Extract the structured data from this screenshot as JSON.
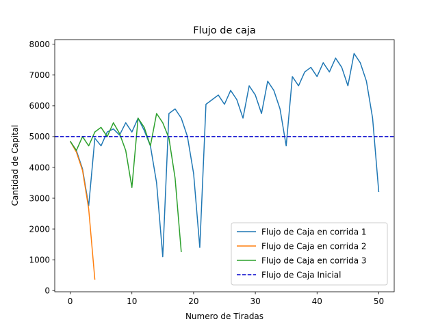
{
  "chart_data": {
    "type": "line",
    "title": "Flujo de caja",
    "xlabel": "Numero de Tiradas",
    "ylabel": "Cantidad de Capital",
    "xlim": [
      -2.5,
      52.5
    ],
    "ylim": [
      -40,
      8150
    ],
    "xticks": [
      0,
      10,
      20,
      30,
      40,
      50
    ],
    "yticks": [
      0,
      1000,
      2000,
      3000,
      4000,
      5000,
      6000,
      7000,
      8000
    ],
    "grid": false,
    "legend_position": "lower-right",
    "series": [
      {
        "name": "Flujo de Caja en corrida 1",
        "color": "#1f77b4",
        "style": "solid",
        "x": [
          0,
          1,
          2,
          3,
          4,
          5,
          6,
          7,
          8,
          9,
          10,
          11,
          12,
          13,
          14,
          15,
          16,
          17,
          18,
          19,
          20,
          21,
          22,
          23,
          24,
          25,
          26,
          27,
          28,
          29,
          30,
          31,
          32,
          33,
          34,
          35,
          36,
          37,
          38,
          39,
          40,
          41,
          42,
          43,
          44,
          45,
          46,
          47,
          48,
          49,
          50
        ],
        "y": [
          4850,
          4550,
          3950,
          2750,
          4950,
          4700,
          5150,
          5250,
          5050,
          5450,
          5150,
          5600,
          5200,
          4700,
          3500,
          1100,
          5750,
          5900,
          5600,
          5000,
          3800,
          1400,
          6050,
          6200,
          6350,
          6050,
          6500,
          6200,
          5600,
          6650,
          6350,
          5750,
          6800,
          6500,
          5900,
          4700,
          6950,
          6650,
          7100,
          7250,
          6950,
          7400,
          7100,
          7550,
          7250,
          6650,
          7700,
          7400,
          6800,
          5600,
          3200
        ]
      },
      {
        "name": "Flujo de Caja en corrida 2",
        "color": "#ff7f0e",
        "style": "solid",
        "x": [
          0,
          1,
          2,
          3,
          4
        ],
        "y": [
          4850,
          4500,
          3900,
          2650,
          350
        ]
      },
      {
        "name": "Flujo de Caja en corrida 3",
        "color": "#2ca02c",
        "style": "solid",
        "x": [
          0,
          1,
          2,
          3,
          4,
          5,
          6,
          7,
          8,
          9,
          10,
          11,
          12,
          13,
          14,
          15,
          16,
          17,
          18
        ],
        "y": [
          4850,
          4550,
          5000,
          4700,
          5150,
          5300,
          5000,
          5450,
          5100,
          4550,
          3350,
          5600,
          5300,
          4700,
          5750,
          5450,
          4950,
          3650,
          1250
        ]
      },
      {
        "name": "Flujo de Caja Inicial",
        "color": "#0000cc",
        "style": "dashed",
        "x": [
          -2.5,
          52.5
        ],
        "y": [
          5000,
          5000
        ]
      }
    ]
  }
}
